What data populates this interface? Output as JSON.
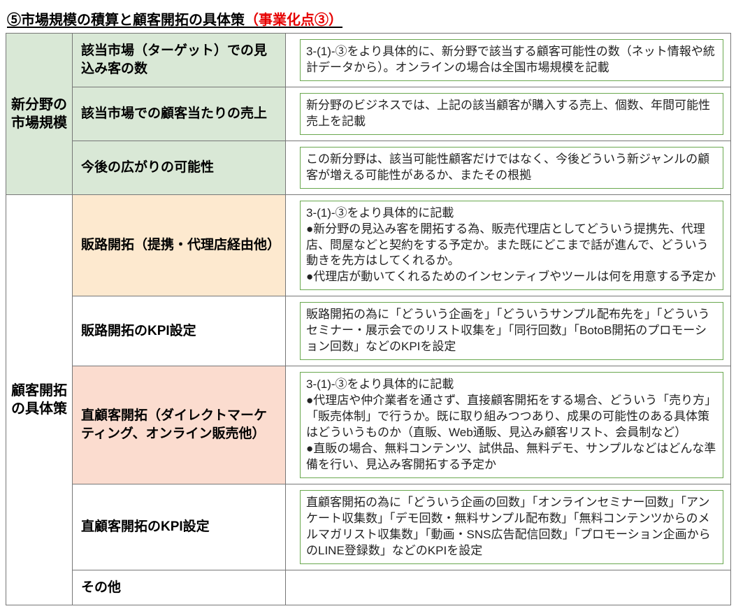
{
  "title": {
    "main": "⑤市場規模の積算と顧客開拓の具体策",
    "accent": "（事業化点③）"
  },
  "colors": {
    "green": "#d9e8d6",
    "orange": "#fde9cf",
    "peach": "#fbdccf",
    "white": "#ffffff",
    "descBorder": "#6aa84f",
    "cellBorder": "#777777",
    "accent": "#e60000"
  },
  "sections": [
    {
      "category": "新分野の市場規模",
      "categoryBg": "green",
      "rows": [
        {
          "subhead": "該当市場（ターゲット）での見込み客の数",
          "subBg": "green",
          "desc": "3-(1)-③をより具体的に、新分野で該当する顧客可能性の数（ネット情報や統計データから）。オンラインの場合は全国市場規模を記載"
        },
        {
          "subhead": "該当市場での顧客当たりの売上",
          "subBg": "green",
          "desc": "新分野のビジネスでは、上記の該当顧客が購入する売上、個数、年間可能性売上を記載"
        },
        {
          "subhead": "今後の広がりの可能性",
          "subBg": "green",
          "desc": "この新分野は、該当可能性顧客だけではなく、今後どういう新ジャンルの顧客が増える可能性があるか、またその根拠"
        }
      ]
    },
    {
      "category": "顧客開拓の具体策",
      "categoryBg": "white",
      "rows": [
        {
          "subhead": "販路開拓（提携・代理店経由他）",
          "subBg": "orange",
          "desc": "3-(1)-③をより具体的に記載\n●新分野の見込み客を開拓する為、販売代理店としてどういう提携先、代理店、問屋などと契約をする予定か。また既にどこまで話が進んで、どういう動きを先方はしてくれるか。\n●代理店が動いてくれるためのインセンティブやツールは何を用意する予定か"
        },
        {
          "subhead": "販路開拓のKPI設定",
          "subBg": "white",
          "desc": "販路開拓の為に「どういう企画を」「どういうサンプル配布先を」「どういうセミナー・展示会でのリスト収集を」「同行回数」「BotoB開拓のプロモーション回数」などのKPIを設定"
        },
        {
          "subhead": "直顧客開拓（ダイレクトマーケティング、オンライン販売他）",
          "subBg": "peach",
          "desc": "3-(1)-③をより具体的に記載\n●代理店や仲介業者を通さず、直接顧客開拓をする場合、どういう「売り方」「販売体制」で行うか。既に取り組みつつあり、成果の可能性のある具体策はどういうものか（直販、Web通販、見込み顧客リスト、会員制など）\n●直販の場合、無料コンテンツ、試供品、無料デモ、サンプルなどはどんな準備を行い、見込み客開拓する予定か"
        },
        {
          "subhead": "直顧客開拓のKPI設定",
          "subBg": "white",
          "desc": "直顧客開拓の為に「どういう企画の回数」「オンラインセミナー回数」「アンケート収集数」「デモ回数・無料サンプル配布数」「無料コンテンツからのメルマガリスト収集数」「動画・SNS広告配信回数」「プロモーション企画からのLINE登録数」などのKPIを設定"
        },
        {
          "subhead": "その他",
          "subBg": "white",
          "desc": null
        }
      ]
    }
  ]
}
